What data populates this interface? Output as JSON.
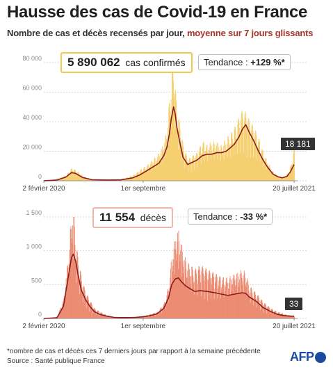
{
  "title": "Hausse des cas de Covid-19 en France",
  "subtitle": {
    "main": "Nombre de cas et décès recensés par jour, ",
    "accent": "moyenne sur 7 jours glissants"
  },
  "colors": {
    "cases_bar": "#f5cf6e",
    "cases_line": "#8b1c1c",
    "deaths_bar": "#ec8a70",
    "deaths_line": "#8b1c1c",
    "accent": "#a4352b",
    "cases_box_border": "#f2c94c",
    "deaths_box_border": "#f0b7a8"
  },
  "cases_panel": {
    "total_value": "5 890 062",
    "total_label": "cas confirmés",
    "trend_label": "Tendance : ",
    "trend_value": "+129 %*",
    "last_value": "18 181"
  },
  "deaths_panel": {
    "total_value": "11 554",
    "total_label": "décès",
    "trend_label": "Tendance : ",
    "trend_value": "-33 %*",
    "last_value": "33"
  },
  "footnote": "*nombre de cas et décès ces 7 derniers jours par rapport à la semaine précédente",
  "source": "Source : Santé publique France",
  "logo_text": "AFP",
  "chart_data": [
    {
      "type": "bar",
      "x_range": [
        "2020-02-02",
        "2021-07-20"
      ],
      "xtick_labels": [
        "2 février 2020",
        "1er septembre",
        "20 juillet 2021"
      ],
      "xtick_dates": [
        "2020-02-02",
        "2020-09-01",
        "2021-07-20"
      ],
      "ylim": [
        0,
        80000
      ],
      "yticks": [
        0,
        20000,
        40000,
        60000,
        80000
      ],
      "ytick_labels": [
        "0",
        "20 000",
        "40 000",
        "60 000",
        "80 000"
      ],
      "grid": true,
      "series": [
        {
          "kind": "daily-bars",
          "x": [
            "2020-02-02",
            "2020-03-01",
            "2020-03-20",
            "2020-04-01",
            "2020-04-10",
            "2020-04-25",
            "2020-05-15",
            "2020-06-15",
            "2020-07-15",
            "2020-08-10",
            "2020-08-25",
            "2020-09-10",
            "2020-09-25",
            "2020-10-05",
            "2020-10-15",
            "2020-10-22",
            "2020-10-27",
            "2020-10-31",
            "2020-11-05",
            "2020-11-08",
            "2020-11-12",
            "2020-11-17",
            "2020-11-25",
            "2020-12-05",
            "2020-12-15",
            "2020-12-25",
            "2021-01-05",
            "2021-01-15",
            "2021-01-25",
            "2021-02-05",
            "2021-02-15",
            "2021-02-25",
            "2021-03-05",
            "2021-03-15",
            "2021-03-25",
            "2021-04-01",
            "2021-04-08",
            "2021-04-15",
            "2021-04-25",
            "2021-05-05",
            "2021-05-15",
            "2021-05-25",
            "2021-06-05",
            "2021-06-15",
            "2021-06-25",
            "2021-07-05",
            "2021-07-12",
            "2021-07-20"
          ],
          "values": [
            0,
            1000,
            3000,
            7000,
            6000,
            2500,
            800,
            600,
            700,
            3000,
            6000,
            9000,
            13000,
            16000,
            22000,
            30000,
            48000,
            58000,
            70000,
            52000,
            40000,
            33000,
            20000,
            12000,
            14000,
            16000,
            22000,
            20000,
            22000,
            22000,
            20000,
            24000,
            26000,
            30000,
            36000,
            40000,
            38000,
            34000,
            30000,
            24000,
            16000,
            10000,
            5000,
            3000,
            2000,
            4000,
            8000,
            18181
          ]
        },
        {
          "kind": "7-day-average",
          "x": [
            "2020-02-02",
            "2020-03-01",
            "2020-03-20",
            "2020-04-01",
            "2020-04-10",
            "2020-04-25",
            "2020-05-15",
            "2020-06-15",
            "2020-07-15",
            "2020-08-10",
            "2020-08-25",
            "2020-09-10",
            "2020-09-25",
            "2020-10-05",
            "2020-10-15",
            "2020-10-22",
            "2020-10-27",
            "2020-10-31",
            "2020-11-05",
            "2020-11-08",
            "2020-11-12",
            "2020-11-17",
            "2020-11-25",
            "2020-12-05",
            "2020-12-15",
            "2020-12-25",
            "2021-01-05",
            "2021-01-15",
            "2021-01-25",
            "2021-02-05",
            "2021-02-15",
            "2021-02-25",
            "2021-03-05",
            "2021-03-15",
            "2021-03-25",
            "2021-04-01",
            "2021-04-08",
            "2021-04-15",
            "2021-04-25",
            "2021-05-05",
            "2021-05-15",
            "2021-05-25",
            "2021-06-05",
            "2021-06-15",
            "2021-06-25",
            "2021-07-05",
            "2021-07-12",
            "2021-07-20"
          ],
          "values": [
            0,
            500,
            2500,
            5500,
            5000,
            2200,
            700,
            500,
            600,
            2000,
            4000,
            7000,
            10000,
            12000,
            17000,
            23000,
            32000,
            42000,
            50000,
            46000,
            36000,
            28000,
            16000,
            11000,
            12500,
            14000,
            17000,
            18000,
            18000,
            19000,
            19000,
            20000,
            22000,
            25000,
            30000,
            35000,
            38000,
            33000,
            27000,
            20000,
            14000,
            9000,
            4500,
            2800,
            2000,
            3000,
            6000,
            11000
          ]
        }
      ],
      "last_value_label": "18 181"
    },
    {
      "type": "bar",
      "x_range": [
        "2020-02-02",
        "2021-07-20"
      ],
      "xtick_labels": [
        "2 février 2020",
        "1er septembre",
        "20 juillet 2021"
      ],
      "xtick_dates": [
        "2020-02-02",
        "2020-09-01",
        "2021-07-20"
      ],
      "ylim": [
        0,
        1500
      ],
      "yticks": [
        0,
        500,
        1000,
        1500
      ],
      "ytick_labels": [
        "0",
        "500",
        "1 000",
        "1 500"
      ],
      "grid": true,
      "series": [
        {
          "kind": "daily-bars",
          "x": [
            "2020-02-02",
            "2020-03-01",
            "2020-03-15",
            "2020-03-25",
            "2020-04-01",
            "2020-04-05",
            "2020-04-10",
            "2020-04-15",
            "2020-04-22",
            "2020-05-01",
            "2020-05-10",
            "2020-05-20",
            "2020-06-01",
            "2020-06-15",
            "2020-07-01",
            "2020-07-15",
            "2020-08-01",
            "2020-08-15",
            "2020-09-01",
            "2020-09-15",
            "2020-10-01",
            "2020-10-15",
            "2020-10-25",
            "2020-11-01",
            "2020-11-08",
            "2020-11-15",
            "2020-11-22",
            "2020-12-01",
            "2020-12-10",
            "2020-12-20",
            "2021-01-01",
            "2021-01-15",
            "2021-02-01",
            "2021-02-15",
            "2021-03-01",
            "2021-03-15",
            "2021-04-01",
            "2021-04-08",
            "2021-04-15",
            "2021-05-01",
            "2021-05-15",
            "2021-06-01",
            "2021-06-15",
            "2021-07-01",
            "2021-07-10",
            "2021-07-20"
          ],
          "values": [
            0,
            20,
            250,
            800,
            1300,
            1420,
            900,
            750,
            500,
            320,
            220,
            120,
            80,
            40,
            20,
            15,
            15,
            20,
            30,
            50,
            80,
            180,
            400,
            800,
            1000,
            1100,
            900,
            700,
            650,
            600,
            650,
            600,
            550,
            500,
            500,
            550,
            600,
            550,
            400,
            300,
            200,
            120,
            80,
            50,
            40,
            33
          ]
        },
        {
          "kind": "7-day-average",
          "x": [
            "2020-02-02",
            "2020-03-01",
            "2020-03-15",
            "2020-03-25",
            "2020-04-01",
            "2020-04-05",
            "2020-04-10",
            "2020-04-15",
            "2020-04-22",
            "2020-05-01",
            "2020-05-10",
            "2020-05-20",
            "2020-06-01",
            "2020-06-15",
            "2020-07-01",
            "2020-07-15",
            "2020-08-01",
            "2020-08-15",
            "2020-09-01",
            "2020-09-15",
            "2020-10-01",
            "2020-10-15",
            "2020-10-25",
            "2020-11-01",
            "2020-11-08",
            "2020-11-15",
            "2020-11-22",
            "2020-12-01",
            "2020-12-10",
            "2020-12-20",
            "2021-01-01",
            "2021-01-15",
            "2021-02-01",
            "2021-02-15",
            "2021-03-01",
            "2021-03-15",
            "2021-04-01",
            "2021-04-08",
            "2021-04-15",
            "2021-05-01",
            "2021-05-15",
            "2021-06-01",
            "2021-06-15",
            "2021-07-01",
            "2021-07-10",
            "2021-07-20"
          ],
          "values": [
            0,
            10,
            180,
            600,
            900,
            950,
            850,
            650,
            420,
            280,
            180,
            100,
            60,
            35,
            15,
            12,
            12,
            15,
            25,
            40,
            70,
            150,
            300,
            500,
            580,
            600,
            540,
            480,
            440,
            400,
            410,
            400,
            380,
            360,
            340,
            360,
            380,
            370,
            320,
            250,
            160,
            100,
            60,
            40,
            35,
            33
          ]
        }
      ],
      "last_value_label": "33"
    }
  ]
}
